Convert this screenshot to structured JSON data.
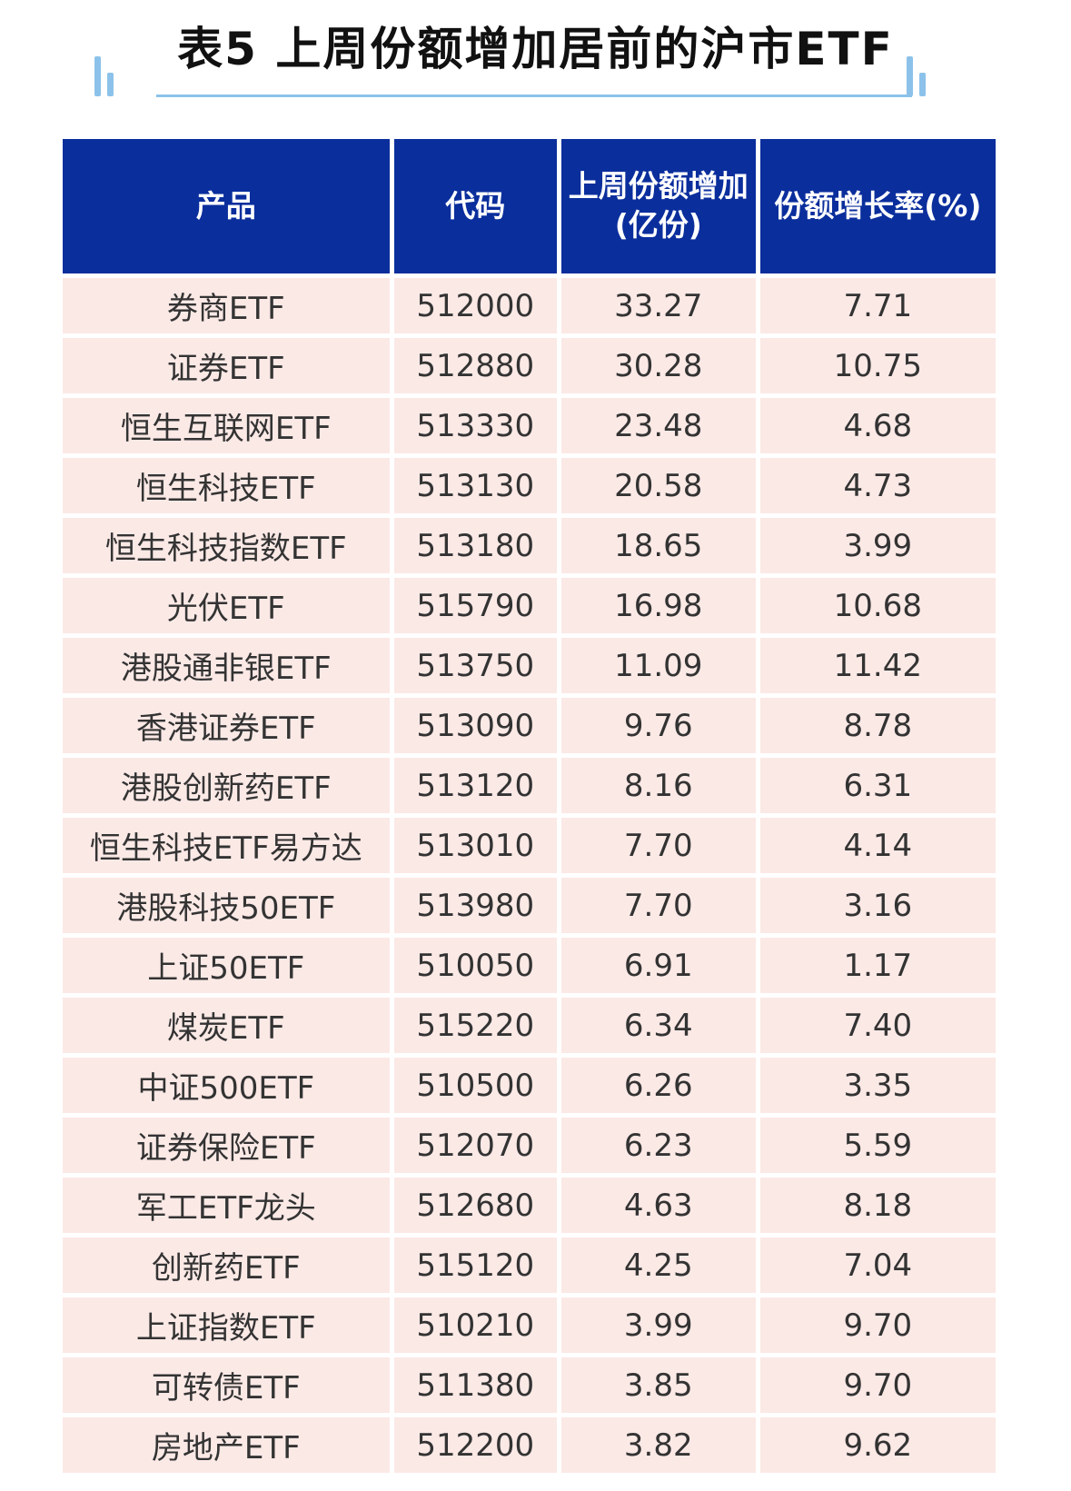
{
  "title": "表5 上周份额增加居前的沪市ETF",
  "table": {
    "headers": [
      {
        "line1": "产品",
        "line2": ""
      },
      {
        "line1": "代码",
        "line2": ""
      },
      {
        "line1": "上周份额增加",
        "line2": "(亿份)"
      },
      {
        "line1": "份额增长率(%)",
        "line2": ""
      }
    ],
    "rows": [
      [
        "券商ETF",
        "512000",
        "33.27",
        "7.71"
      ],
      [
        "证券ETF",
        "512880",
        "30.28",
        "10.75"
      ],
      [
        "恒生互联网ETF",
        "513330",
        "23.48",
        "4.68"
      ],
      [
        "恒生科技ETF",
        "513130",
        "20.58",
        "4.73"
      ],
      [
        "恒生科技指数ETF",
        "513180",
        "18.65",
        "3.99"
      ],
      [
        "光伏ETF",
        "515790",
        "16.98",
        "10.68"
      ],
      [
        "港股通非银ETF",
        "513750",
        "11.09",
        "11.42"
      ],
      [
        "香港证券ETF",
        "513090",
        "9.76",
        "8.78"
      ],
      [
        "港股创新药ETF",
        "513120",
        "8.16",
        "6.31"
      ],
      [
        "恒生科技ETF易方达",
        "513010",
        "7.70",
        "4.14"
      ],
      [
        "港股科技50ETF",
        "513980",
        "7.70",
        "3.16"
      ],
      [
        "上证50ETF",
        "510050",
        "6.91",
        "1.17"
      ],
      [
        "煤炭ETF",
        "515220",
        "6.34",
        "7.40"
      ],
      [
        "中证500ETF",
        "510500",
        "6.26",
        "3.35"
      ],
      [
        "证券保险ETF",
        "512070",
        "6.23",
        "5.59"
      ],
      [
        "军工ETF龙头",
        "512680",
        "4.63",
        "8.18"
      ],
      [
        "创新药ETF",
        "515120",
        "4.25",
        "7.04"
      ],
      [
        "上证指数ETF",
        "510210",
        "3.99",
        "9.70"
      ],
      [
        "可转债ETF",
        "511380",
        "3.85",
        "9.70"
      ],
      [
        "房地产ETF",
        "512200",
        "3.82",
        "9.62"
      ]
    ]
  }
}
